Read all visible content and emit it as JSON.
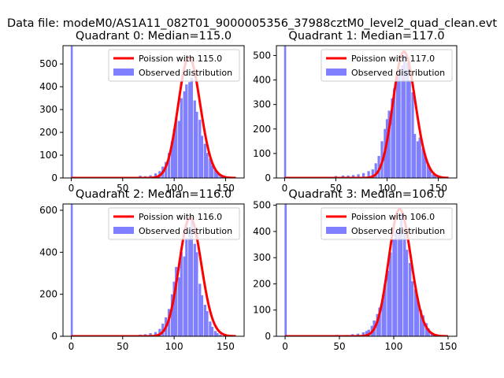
{
  "figure_title": "Data file: modeM0/AS1A11_082T01_9000005356_37988cztM0_level2_quad_clean.evt",
  "colors": {
    "poisson": "#ff0000",
    "observed": "#8080ff",
    "background": "#ffffff"
  },
  "chart_data": [
    {
      "type": "bar",
      "title": "Quadrant 0: Median=115.0",
      "xlim": [
        -8,
        168
      ],
      "ylim": [
        0,
        580
      ],
      "xticks": [
        0,
        50,
        100,
        150
      ],
      "yticks": [
        0,
        100,
        200,
        300,
        400,
        500
      ],
      "legend": {
        "placement": "top-right",
        "entries": [
          "Poission with 115.0",
          "Observed distribution"
        ]
      },
      "zero_bin": 580,
      "poisson": {
        "name": "Poission with 115.0",
        "mean": 115.0,
        "peak": 528,
        "xrange": [
          0,
          160
        ]
      },
      "histogram": {
        "name": "Observed distribution",
        "bin_width": 2.5,
        "bins": [
          [
            67,
            10
          ],
          [
            72,
            8
          ],
          [
            77,
            12
          ],
          [
            82,
            20
          ],
          [
            86,
            30
          ],
          [
            89,
            50
          ],
          [
            92,
            70
          ],
          [
            95,
            110
          ],
          [
            98,
            160
          ],
          [
            100,
            215
          ],
          [
            102,
            265
          ],
          [
            105,
            250
          ],
          [
            107,
            350
          ],
          [
            110,
            380
          ],
          [
            112,
            410
          ],
          [
            115,
            420
          ],
          [
            117,
            440
          ],
          [
            120,
            340
          ],
          [
            122,
            290
          ],
          [
            125,
            255
          ],
          [
            127,
            185
          ],
          [
            130,
            150
          ],
          [
            132,
            110
          ],
          [
            135,
            85
          ],
          [
            137,
            55
          ],
          [
            140,
            35
          ],
          [
            142,
            20
          ],
          [
            145,
            12
          ],
          [
            147,
            5
          ]
        ]
      }
    },
    {
      "type": "bar",
      "title": "Quadrant 1: Median=117.0",
      "xlim": [
        -8,
        168
      ],
      "ylim": [
        0,
        540
      ],
      "xticks": [
        0,
        50,
        100,
        150
      ],
      "yticks": [
        0,
        100,
        200,
        300,
        400,
        500
      ],
      "legend": {
        "placement": "top-right",
        "entries": [
          "Poission with 117.0",
          "Observed distribution"
        ]
      },
      "zero_bin": 540,
      "poisson": {
        "name": "Poission with 117.0",
        "mean": 117.0,
        "peak": 515,
        "xrange": [
          0,
          160
        ]
      },
      "histogram": {
        "name": "Observed distribution",
        "bin_width": 2.5,
        "bins": [
          [
            40,
            5
          ],
          [
            50,
            8
          ],
          [
            57,
            10
          ],
          [
            62,
            10
          ],
          [
            67,
            12
          ],
          [
            72,
            15
          ],
          [
            77,
            20
          ],
          [
            82,
            28
          ],
          [
            86,
            35
          ],
          [
            89,
            60
          ],
          [
            92,
            90
          ],
          [
            95,
            150
          ],
          [
            98,
            200
          ],
          [
            100,
            240
          ],
          [
            102,
            275
          ],
          [
            105,
            325
          ],
          [
            107,
            365
          ],
          [
            110,
            415
          ],
          [
            112,
            430
          ],
          [
            115,
            460
          ],
          [
            117,
            500
          ],
          [
            120,
            470
          ],
          [
            122,
            400
          ],
          [
            125,
            350
          ],
          [
            127,
            180
          ],
          [
            130,
            150
          ],
          [
            132,
            165
          ],
          [
            135,
            120
          ],
          [
            137,
            85
          ],
          [
            140,
            60
          ],
          [
            142,
            35
          ],
          [
            145,
            15
          ],
          [
            147,
            10
          ]
        ]
      }
    },
    {
      "type": "bar",
      "title": "Quadrant 2: Median=116.0",
      "xlim": [
        -8,
        168
      ],
      "ylim": [
        0,
        630
      ],
      "xticks": [
        0,
        50,
        100,
        150
      ],
      "yticks": [
        0,
        200,
        400,
        600
      ],
      "legend": {
        "placement": "top-right",
        "entries": [
          "Poission with 116.0",
          "Observed distribution"
        ]
      },
      "zero_bin": 630,
      "poisson": {
        "name": "Poission with 116.0",
        "mean": 116.0,
        "peak": 565,
        "xrange": [
          0,
          160
        ]
      },
      "histogram": {
        "name": "Observed distribution",
        "bin_width": 2.5,
        "bins": [
          [
            62,
            5
          ],
          [
            67,
            8
          ],
          [
            72,
            10
          ],
          [
            77,
            15
          ],
          [
            82,
            20
          ],
          [
            86,
            35
          ],
          [
            89,
            60
          ],
          [
            92,
            90
          ],
          [
            95,
            130
          ],
          [
            98,
            200
          ],
          [
            100,
            260
          ],
          [
            102,
            330
          ],
          [
            105,
            280
          ],
          [
            107,
            400
          ],
          [
            110,
            380
          ],
          [
            112,
            470
          ],
          [
            115,
            500
          ],
          [
            117,
            570
          ],
          [
            120,
            440
          ],
          [
            122,
            400
          ],
          [
            125,
            250
          ],
          [
            127,
            195
          ],
          [
            130,
            150
          ],
          [
            132,
            120
          ],
          [
            135,
            70
          ],
          [
            137,
            45
          ],
          [
            140,
            25
          ],
          [
            142,
            15
          ],
          [
            145,
            8
          ]
        ]
      }
    },
    {
      "type": "bar",
      "title": "Quadrant 3: Median=106.0",
      "xlim": [
        -8,
        158
      ],
      "ylim": [
        0,
        505
      ],
      "xticks": [
        0,
        50,
        100,
        150
      ],
      "yticks": [
        0,
        100,
        200,
        300,
        400,
        500
      ],
      "legend": {
        "placement": "top-right",
        "entries": [
          "Poission with 106.0",
          "Observed distribution"
        ]
      },
      "zero_bin": 505,
      "poisson": {
        "name": "Poission with 106.0",
        "mean": 106.0,
        "peak": 485,
        "xrange": [
          0,
          150
        ]
      },
      "histogram": {
        "name": "Observed distribution",
        "bin_width": 2.5,
        "bins": [
          [
            47,
            5
          ],
          [
            57,
            5
          ],
          [
            62,
            8
          ],
          [
            67,
            10
          ],
          [
            72,
            15
          ],
          [
            75,
            20
          ],
          [
            77,
            25
          ],
          [
            80,
            40
          ],
          [
            82,
            60
          ],
          [
            85,
            85
          ],
          [
            87,
            110
          ],
          [
            90,
            135
          ],
          [
            92,
            200
          ],
          [
            95,
            250
          ],
          [
            97,
            320
          ],
          [
            100,
            370
          ],
          [
            102,
            400
          ],
          [
            105,
            410
          ],
          [
            107,
            470
          ],
          [
            110,
            390
          ],
          [
            112,
            330
          ],
          [
            115,
            280
          ],
          [
            117,
            210
          ],
          [
            120,
            180
          ],
          [
            122,
            145
          ],
          [
            125,
            100
          ],
          [
            127,
            80
          ],
          [
            130,
            50
          ],
          [
            132,
            30
          ],
          [
            135,
            15
          ],
          [
            137,
            8
          ]
        ]
      }
    }
  ]
}
